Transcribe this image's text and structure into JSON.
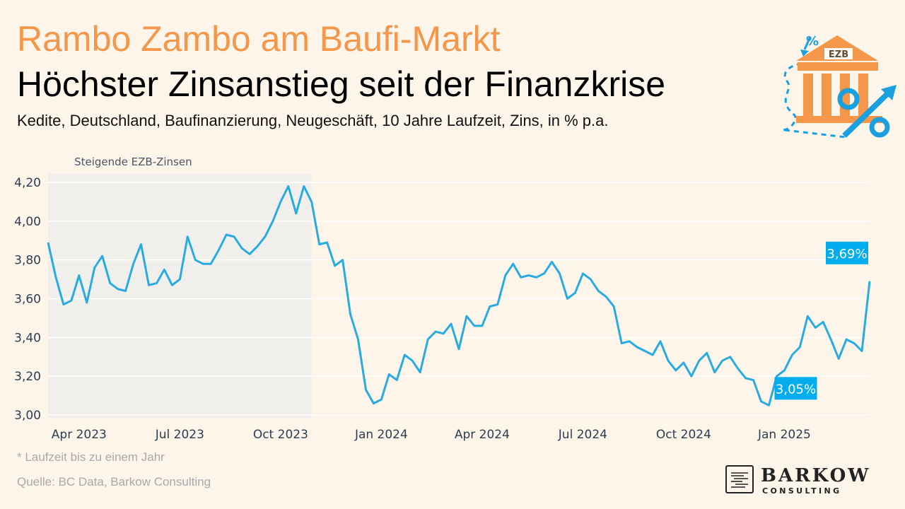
{
  "header": {
    "title_line1": "Rambo Zambo am Baufi-Markt",
    "title_line2": "Höchster Zinsanstieg seit der Finanzkrise",
    "subtitle": "Kedite, Deutschland,  Baufinanzierung, Neugeschäft, 10 Jahre Laufzeit, Zins, in % p.a."
  },
  "logo": {
    "bank_label": "EZB",
    "icon": "ezb-bank-rising-interest-icon"
  },
  "colors": {
    "line": "#29abe2",
    "highlight_band": "#f0efec",
    "title_accent": "#f4974a",
    "badge": "#00aeef"
  },
  "chart_data": {
    "type": "line",
    "y_range": [
      3.0,
      4.2
    ],
    "y_ticks": [
      "3,00",
      "3,20",
      "3,40",
      "3,60",
      "3,80",
      "4,00",
      "4,20"
    ],
    "y_tick_values": [
      3.0,
      3.2,
      3.4,
      3.6,
      3.8,
      4.0,
      4.2
    ],
    "x_ticks": [
      "Apr 2023",
      "Jul 2023",
      "Oct 2023",
      "Jan 2024",
      "Apr 2024",
      "Jul 2024",
      "Oct 2024",
      "Jan 2025"
    ],
    "x_tick_index": [
      4,
      17,
      30,
      43,
      56,
      69,
      82,
      95
    ],
    "shaded_region": {
      "label": "Steigende EZB-Zinsen",
      "from_index": 0,
      "to_index": 34
    },
    "grid": "horizontal",
    "legend": "none",
    "series": [
      {
        "values": [
          3.89,
          3.71,
          3.57,
          3.59,
          3.72,
          3.58,
          3.76,
          3.82,
          3.68,
          3.65,
          3.64,
          3.78,
          3.88,
          3.67,
          3.68,
          3.75,
          3.67,
          3.7,
          3.92,
          3.8,
          3.78,
          3.78,
          3.85,
          3.93,
          3.92,
          3.86,
          3.83,
          3.87,
          3.92,
          4.0,
          4.1,
          4.18,
          4.04,
          4.18,
          4.1,
          3.88,
          3.89,
          3.77,
          3.8,
          3.52,
          3.39,
          3.13,
          3.06,
          3.08,
          3.21,
          3.18,
          3.31,
          3.28,
          3.22,
          3.39,
          3.43,
          3.42,
          3.47,
          3.34,
          3.51,
          3.46,
          3.46,
          3.56,
          3.57,
          3.72,
          3.78,
          3.71,
          3.72,
          3.71,
          3.73,
          3.79,
          3.73,
          3.6,
          3.63,
          3.73,
          3.7,
          3.64,
          3.61,
          3.56,
          3.37,
          3.38,
          3.35,
          3.33,
          3.31,
          3.38,
          3.28,
          3.23,
          3.27,
          3.2,
          3.28,
          3.32,
          3.22,
          3.28,
          3.3,
          3.24,
          3.19,
          3.18,
          3.07,
          3.05,
          3.2,
          3.23,
          3.31,
          3.35,
          3.51,
          3.45,
          3.48,
          3.39,
          3.29,
          3.39,
          3.37,
          3.33,
          3.69
        ]
      }
    ],
    "annotations": [
      {
        "text": "3,05%",
        "index": 93,
        "value": 3.05
      },
      {
        "text": "3,69%",
        "index": 106,
        "value": 3.69
      }
    ]
  },
  "footer": {
    "footnote": "* Laufzeit bis zu einem Jahr",
    "source": "Quelle: BC Data, Barkow Consulting"
  },
  "brand": {
    "name": "BARKOW",
    "sub": "CONSULTING",
    "icon": "barkow-logo-icon"
  }
}
